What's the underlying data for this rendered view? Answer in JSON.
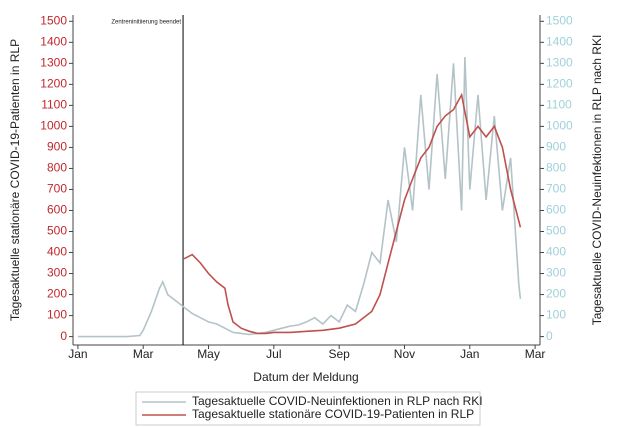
{
  "chart_data": {
    "type": "line",
    "annotation": {
      "text": "Zentreninitiierung beendet",
      "x": 3.22
    },
    "xlabel": "Datum der Meldung",
    "ylabel": "Tagesaktuelle stationäre COVID-19-Patienten in RLP",
    "y2label": "Tagesaktuelle COVID-Neuinfektionen in RLP nach RKI",
    "xlim": [
      -0.15,
      14.15
    ],
    "xticks": [
      {
        "value": 0,
        "label": "Jan"
      },
      {
        "value": 2,
        "label": "Mar"
      },
      {
        "value": 4,
        "label": "May"
      },
      {
        "value": 6,
        "label": "Jul"
      },
      {
        "value": 8,
        "label": "Sep"
      },
      {
        "value": 10,
        "label": "Nov"
      },
      {
        "value": 12,
        "label": "Jan"
      },
      {
        "value": 14,
        "label": "Mar"
      }
    ],
    "ylim": [
      -40,
      1530
    ],
    "yticks": [
      0,
      100,
      200,
      300,
      400,
      500,
      600,
      700,
      800,
      900,
      1000,
      1100,
      1200,
      1300,
      1400,
      1500
    ],
    "y2lim": [
      -40,
      1530
    ],
    "y2ticks": [
      0,
      100,
      200,
      300,
      400,
      500,
      600,
      700,
      800,
      900,
      1000,
      1100,
      1200,
      1300,
      1400,
      1500
    ],
    "ytick_color": "#c0282d",
    "y2tick_color": "#9fd0dc",
    "series": [
      {
        "name": "Tagesaktuelle COVID-Neuinfektionen in RLP nach RKI",
        "color": "#b3c3c8",
        "axis": "y2",
        "x": [
          0,
          0.5,
          1,
          1.5,
          1.9,
          2.0,
          2.25,
          2.5,
          2.6,
          2.75,
          3.0,
          3.25,
          3.5,
          3.75,
          4.0,
          4.25,
          4.5,
          4.75,
          5.0,
          5.25,
          5.5,
          5.75,
          6.0,
          6.25,
          6.5,
          6.75,
          7.0,
          7.25,
          7.5,
          7.75,
          8.0,
          8.25,
          8.5,
          8.75,
          9.0,
          9.25,
          9.5,
          9.75,
          10.0,
          10.25,
          10.5,
          10.75,
          11.0,
          11.25,
          11.5,
          11.75,
          11.85,
          12.0,
          12.25,
          12.5,
          12.75,
          13.0,
          13.25,
          13.5,
          13.55
        ],
        "values": [
          0,
          0,
          0,
          0,
          5,
          30,
          120,
          230,
          260,
          200,
          170,
          140,
          110,
          90,
          70,
          60,
          40,
          20,
          15,
          10,
          15,
          20,
          30,
          40,
          50,
          55,
          70,
          90,
          60,
          100,
          70,
          150,
          120,
          250,
          400,
          350,
          650,
          450,
          900,
          600,
          1150,
          700,
          1250,
          750,
          1300,
          600,
          1330,
          700,
          1150,
          650,
          1050,
          600,
          850,
          250,
          180
        ]
      },
      {
        "name": "Tagesaktuelle stationäre COVID-19-Patienten in RLP",
        "color": "#c0504d",
        "axis": "y",
        "x": [
          3.25,
          3.5,
          3.75,
          4.0,
          4.25,
          4.5,
          4.6,
          4.75,
          5.0,
          5.25,
          5.5,
          5.75,
          6.0,
          6.5,
          7.0,
          7.5,
          8.0,
          8.5,
          9.0,
          9.25,
          9.5,
          9.75,
          10.0,
          10.25,
          10.5,
          10.75,
          11.0,
          11.25,
          11.5,
          11.75,
          12.0,
          12.25,
          12.5,
          12.75,
          13.0,
          13.25,
          13.5,
          13.55
        ],
        "values": [
          370,
          390,
          350,
          300,
          260,
          230,
          150,
          70,
          40,
          25,
          15,
          15,
          20,
          20,
          25,
          30,
          40,
          60,
          120,
          200,
          350,
          500,
          650,
          750,
          850,
          900,
          1000,
          1050,
          1080,
          1150,
          950,
          1000,
          950,
          1000,
          900,
          700,
          550,
          520
        ]
      }
    ]
  }
}
